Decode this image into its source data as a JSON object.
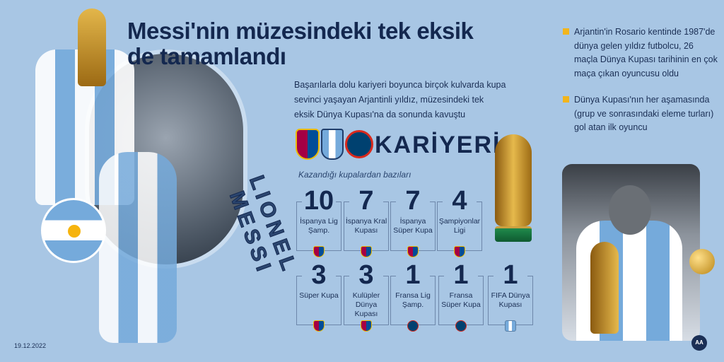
{
  "title": "Messi'nin müzesindeki tek eksik de tamamlandı",
  "intro": "Başarılarla dolu kariyeri boyunca birçok kulvarda kupa sevinci yaşayan Arjantinli yıldız, müzesindeki tek eksik Dünya Kupası'na da sonunda kavuştu",
  "vertical_name": "LIONEL MESSI",
  "career_heading": "KARİYERİ",
  "club_logos": [
    "fc-barcelona-logo",
    "argentina-afa-logo",
    "psg-logo"
  ],
  "subtitle": "Kazandığı kupalardan bazıları",
  "trophies_row1": [
    {
      "count": "10",
      "label": "İspanya Lig Şamp.",
      "team": "fcb"
    },
    {
      "count": "7",
      "label": "İspanya Kral Kupası",
      "team": "fcb"
    },
    {
      "count": "7",
      "label": "İspanya Süper Kupa",
      "team": "fcb"
    },
    {
      "count": "4",
      "label": "Şampiyonlar Ligi",
      "team": "fcb"
    }
  ],
  "trophies_row2": [
    {
      "count": "3",
      "label": "Süper Kupa",
      "team": "fcb"
    },
    {
      "count": "3",
      "label": "Kulüpler Dünya Kupası",
      "team": "fcb"
    },
    {
      "count": "1",
      "label": "Fransa Lig Şamp.",
      "team": "psg"
    },
    {
      "count": "1",
      "label": "Fransa Süper Kupa",
      "team": "psg"
    },
    {
      "count": "1",
      "label": "FIFA Dünya Kupası",
      "team": "afa"
    }
  ],
  "bullets": [
    "Arjantin'in Rosario kentinde 1987'de dünya gelen yıldız futbolcu, 26 maçla Dünya Kupası tarihinin en çok maça çıkan oyuncusu oldu",
    "Dünya Kupası'nın her aşamasında (grup ve sonrasındaki eleme turları) gol atan ilk oyuncu"
  ],
  "date": "19.12.2022",
  "agency_logo": "AA",
  "colors": {
    "background": "#a8c6e4",
    "title": "#14284f",
    "bullet": "#f2b51c"
  }
}
